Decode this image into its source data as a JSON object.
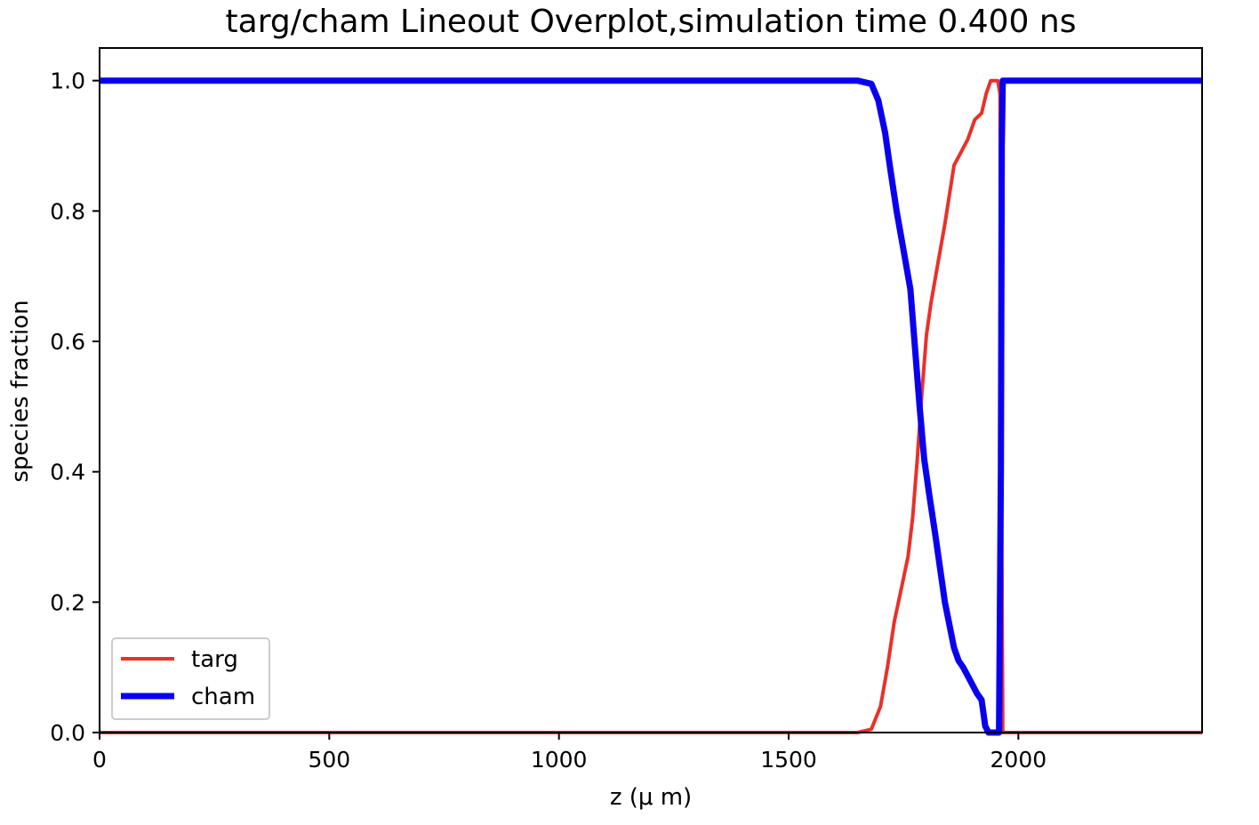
{
  "chart_data": {
    "type": "line",
    "title": "targ/cham Lineout Overplot,simulation time 0.400 ns",
    "xlabel": "z (μ m)",
    "ylabel": "species fraction",
    "xlim": [
      0,
      2400
    ],
    "ylim": [
      0,
      1.05
    ],
    "xticks": [
      0,
      500,
      1000,
      1500,
      2000
    ],
    "xtick_labels": [
      "0",
      "500",
      "1000",
      "1500",
      "2000"
    ],
    "yticks": [
      0.0,
      0.2,
      0.4,
      0.6,
      0.8,
      1.0
    ],
    "ytick_labels": [
      "0.0",
      "0.2",
      "0.4",
      "0.6",
      "0.8",
      "1.0"
    ],
    "grid": false,
    "legend": "lower-left",
    "series": [
      {
        "name": "targ",
        "color": "#e8312a",
        "x": [
          0,
          1650,
          1680,
          1700,
          1715,
          1730,
          1745,
          1760,
          1770,
          1780,
          1790,
          1800,
          1810,
          1825,
          1840,
          1860,
          1875,
          1890,
          1905,
          1920,
          1930,
          1940,
          1945,
          1950,
          1955,
          1960,
          1962,
          1964,
          1966,
          2400
        ],
        "y": [
          0.0,
          0.0,
          0.005,
          0.04,
          0.1,
          0.17,
          0.22,
          0.27,
          0.33,
          0.42,
          0.52,
          0.61,
          0.66,
          0.72,
          0.78,
          0.87,
          0.89,
          0.91,
          0.94,
          0.95,
          0.98,
          1.0,
          1.0,
          1.0,
          1.0,
          0.98,
          0.7,
          0.3,
          0.0,
          0.0
        ]
      },
      {
        "name": "cham",
        "color": "#0a00f0",
        "x": [
          0,
          1650,
          1680,
          1695,
          1710,
          1720,
          1735,
          1750,
          1765,
          1775,
          1785,
          1795,
          1805,
          1820,
          1840,
          1860,
          1870,
          1880,
          1895,
          1910,
          1920,
          1928,
          1935,
          1942,
          1950,
          1955,
          1958,
          1962,
          1964,
          1966,
          2400
        ],
        "y": [
          1.0,
          1.0,
          0.995,
          0.97,
          0.92,
          0.87,
          0.8,
          0.74,
          0.68,
          0.59,
          0.5,
          0.42,
          0.37,
          0.3,
          0.2,
          0.13,
          0.11,
          0.1,
          0.08,
          0.06,
          0.05,
          0.01,
          0.0,
          0.0,
          0.0,
          0.0,
          0.0,
          0.4,
          0.9,
          1.0,
          1.0
        ]
      }
    ]
  }
}
